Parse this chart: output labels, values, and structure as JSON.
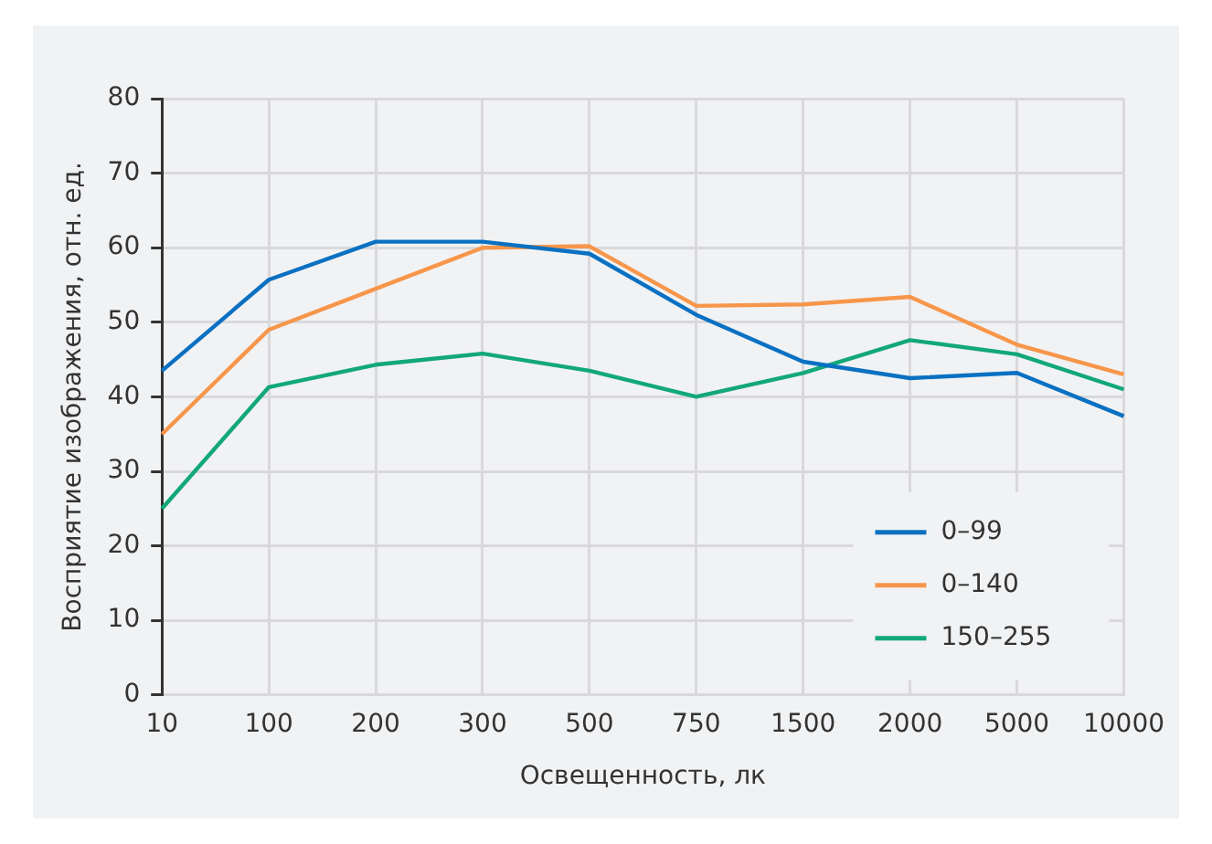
{
  "chart_data": {
    "type": "line",
    "xlabel": "Освещенность, лк",
    "ylabel": "Восприятие изображения, отн. ед.",
    "categories": [
      "10",
      "100",
      "200",
      "300",
      "500",
      "750",
      "1500",
      "2000",
      "5000",
      "10000"
    ],
    "series": [
      {
        "name": "0–99",
        "color": "#0a70c2",
        "values": [
          43.5,
          55.7,
          60.8,
          60.8,
          59.2,
          51,
          44.7,
          42.5,
          43.2,
          37.4
        ]
      },
      {
        "name": "0–140",
        "color": "#f7964a",
        "values": [
          35,
          49,
          54.5,
          60,
          60.2,
          52.2,
          52.4,
          53.4,
          47,
          43
        ]
      },
      {
        "name": "150–255",
        "color": "#12a878",
        "values": [
          25,
          41.3,
          44.3,
          45.8,
          43.5,
          40,
          43.2,
          47.6,
          45.7,
          41
        ]
      }
    ],
    "ylim": [
      0,
      80
    ],
    "yticks": [
      0,
      10,
      20,
      30,
      40,
      50,
      60,
      70,
      80
    ],
    "grid": true,
    "legend": "bottom right",
    "marker": "none",
    "line_style": "solid"
  }
}
